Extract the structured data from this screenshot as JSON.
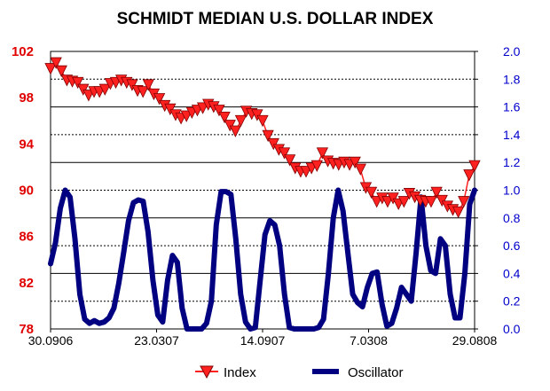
{
  "chart_data": {
    "type": "line",
    "title": "SCHMIDT MEDIAN U.S. DOLLAR INDEX",
    "left_axis": {
      "ylim": [
        78,
        102
      ],
      "ticks": [
        "102",
        "98",
        "94",
        "90",
        "86",
        "82",
        "78"
      ],
      "color": "#e00000"
    },
    "right_axis": {
      "ylim": [
        0.0,
        2.0
      ],
      "ticks": [
        "2.0",
        "1.8",
        "1.6",
        "1.4",
        "1.2",
        "1.0",
        "0.8",
        "0.6",
        "0.4",
        "0.2",
        "0.0"
      ],
      "color": "#0000cc"
    },
    "x_ticks": [
      "30.0906",
      "23.0307",
      "14.0907",
      "7.0308",
      "29.0808"
    ],
    "grid": true,
    "legend": [
      "Index",
      "Oscillator"
    ],
    "series": [
      {
        "name": "Index",
        "axis": "left",
        "color": "#ff2020",
        "marker": "triangle-down",
        "values": [
          100.5,
          101.0,
          100.3,
          99.5,
          99.4,
          99.3,
          98.7,
          98.2,
          98.5,
          98.5,
          98.7,
          99.2,
          99.3,
          99.5,
          99.3,
          99.1,
          98.6,
          98.5,
          99.1,
          98.3,
          97.9,
          97.3,
          97.0,
          96.5,
          96.2,
          96.4,
          96.7,
          96.9,
          97.1,
          97.4,
          97.2,
          96.9,
          96.3,
          95.6,
          95.1,
          96.0,
          96.8,
          96.6,
          96.5,
          96.0,
          94.7,
          94.0,
          93.5,
          93.2,
          92.6,
          91.9,
          91.6,
          91.6,
          91.9,
          92.1,
          93.2,
          92.5,
          92.3,
          92.2,
          92.4,
          92.2,
          92.4,
          91.8,
          90.2,
          89.8,
          89.0,
          89.3,
          89.0,
          89.3,
          88.8,
          89.0,
          89.7,
          89.4,
          89.1,
          89.0,
          89.0,
          89.8,
          89.1,
          88.6,
          88.3,
          88.1,
          89.0,
          91.3,
          92.1
        ]
      },
      {
        "name": "Oscillator",
        "axis": "right",
        "color": "#000080",
        "values": [
          0.47,
          0.62,
          0.87,
          1.0,
          0.95,
          0.65,
          0.25,
          0.07,
          0.04,
          0.06,
          0.04,
          0.05,
          0.08,
          0.15,
          0.33,
          0.55,
          0.78,
          0.91,
          0.93,
          0.92,
          0.7,
          0.35,
          0.1,
          0.05,
          0.35,
          0.53,
          0.48,
          0.15,
          0.0,
          0.0,
          0.0,
          0.0,
          0.04,
          0.2,
          0.75,
          0.99,
          0.99,
          0.97,
          0.65,
          0.25,
          0.05,
          0.0,
          0.01,
          0.35,
          0.68,
          0.78,
          0.75,
          0.6,
          0.25,
          0.01,
          0.0,
          0.0,
          0.0,
          0.0,
          0.0,
          0.01,
          0.07,
          0.4,
          0.8,
          1.0,
          0.85,
          0.55,
          0.25,
          0.19,
          0.16,
          0.3,
          0.4,
          0.41,
          0.18,
          0.02,
          0.04,
          0.15,
          0.3,
          0.25,
          0.2,
          0.55,
          0.95,
          0.6,
          0.42,
          0.4,
          0.65,
          0.6,
          0.25,
          0.08,
          0.08,
          0.4,
          0.9,
          1.0
        ]
      }
    ]
  }
}
